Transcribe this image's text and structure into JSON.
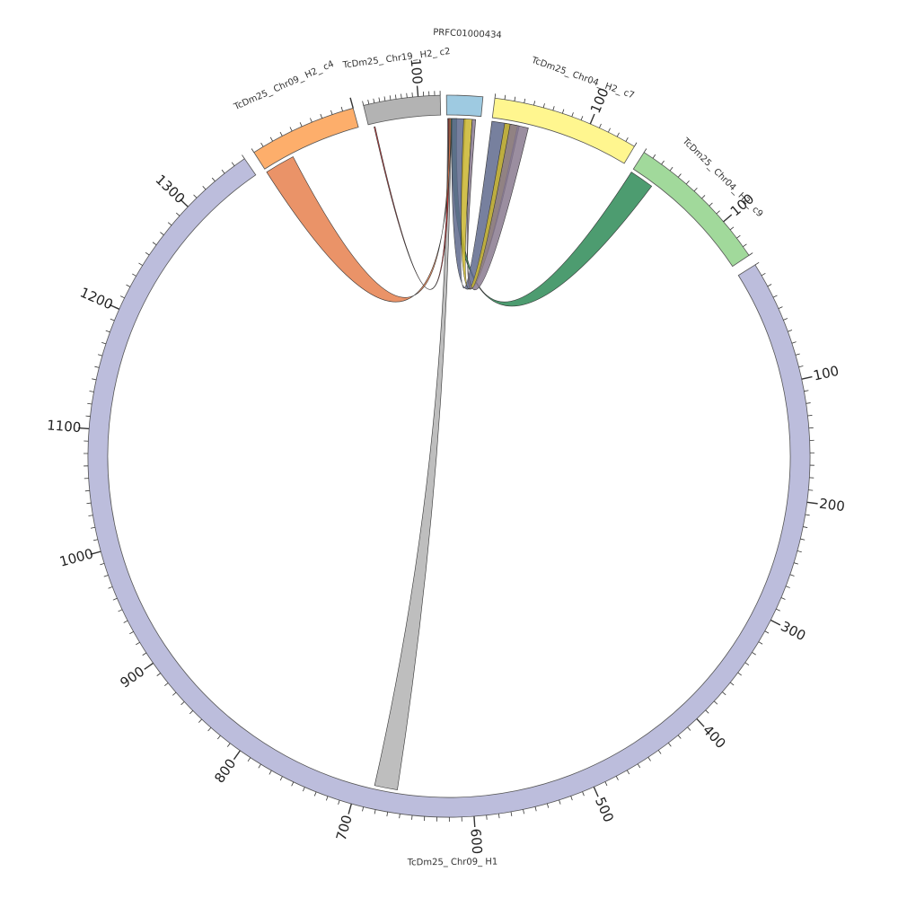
{
  "diagram": {
    "unit_note": "positions in kb along each contig, as read from tick labels",
    "segments": [
      {
        "id": "s1",
        "label": "PRFC01000434",
        "start": 0,
        "end": 40,
        "color": "#9ECAE1",
        "minor": 0,
        "major": 0
      },
      {
        "id": "s2",
        "label": "TcDm25_ Chr04_ H2_ c7",
        "start": 0,
        "end": 150,
        "color": "#FFF68F",
        "minor": 10,
        "major": 100
      },
      {
        "id": "s3",
        "label": "TcDm25_ Chr04_ H2_ c9",
        "start": 0,
        "end": 140,
        "color": "#A1D99B",
        "minor": 10,
        "major": 100
      },
      {
        "id": "s4",
        "label": "TcDm25_ Chr09_ H1",
        "start": 0,
        "end": 1360,
        "color": "#BCBDDC",
        "minor": 10,
        "major": 100
      },
      {
        "id": "s5",
        "label": "TcDm25_ Chr09_ H2_ c4",
        "start": 0,
        "end": 100,
        "color": "#FDAE6B",
        "minor": 10,
        "major": 100
      },
      {
        "id": "s6",
        "label": "TcDm25_ Chr19_ H2_ c2",
        "start": 0,
        "end": 140,
        "color": "#B3B3B3",
        "minor": 10,
        "major": 100
      }
    ],
    "tick_labels": {
      "s2": [
        "100"
      ],
      "s3": [
        "100"
      ],
      "s4": [
        "100",
        "200",
        "300",
        "400",
        "500",
        "600",
        "700",
        "800",
        "900",
        "1000",
        "1100",
        "1200",
        "1300"
      ],
      "s6": [
        "100"
      ]
    },
    "links": [
      {
        "a": "s1",
        "a_start": 1,
        "a_end": 5,
        "b": "s4",
        "b_start": 665,
        "b_end": 685,
        "color": "#B3B3B3"
      },
      {
        "a": "s1",
        "a_start": 2,
        "a_end": 4,
        "b": "s6",
        "b_start": 10,
        "b_end": 12,
        "color": "#E41A1C"
      },
      {
        "a": "s1",
        "a_start": 3,
        "a_end": 5,
        "b": "s5",
        "b_start": 0,
        "b_end": 30,
        "color": "#E6804E"
      },
      {
        "a": "s1",
        "a_start": 5,
        "a_end": 12,
        "b": "s3",
        "b_start": 0,
        "b_end": 25,
        "color": "#2E8B57"
      },
      {
        "a": "s1",
        "a_start": 6,
        "a_end": 22,
        "b": "s2",
        "b_start": 0,
        "b_end": 30,
        "color": "#5F6A8D"
      },
      {
        "a": "s1",
        "a_start": 20,
        "a_end": 30,
        "b": "s2",
        "b_start": 14,
        "b_end": 28,
        "color": "#C9B52E"
      },
      {
        "a": "s1",
        "a_start": 30,
        "a_end": 34,
        "b": "s2",
        "b_start": 20,
        "b_end": 40,
        "color": "#8A7A8F"
      }
    ]
  }
}
